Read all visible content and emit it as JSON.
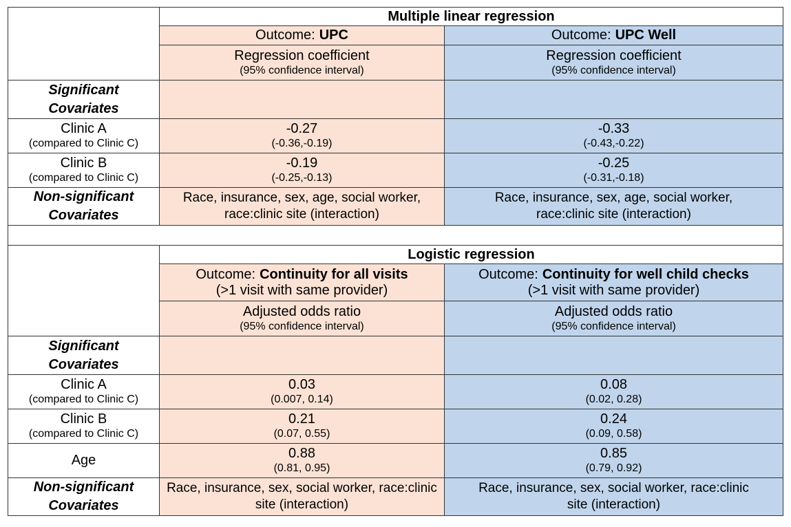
{
  "sections": [
    {
      "title": "Multiple linear regression",
      "outcomes": [
        {
          "prefix": "Outcome:",
          "name": "UPC",
          "measure": "Regression coefficient",
          "measure_note": "(95% confidence interval)"
        },
        {
          "prefix": "Outcome:",
          "name": "UPC Well",
          "measure": "Regression coefficient",
          "measure_note": "(95% confidence interval)"
        }
      ],
      "significant_label": "Significant Covariates",
      "rows": [
        {
          "label": "Clinic A",
          "note": "(compared to Clinic C)",
          "cells": [
            {
              "value": -0.27,
              "ci": "(-0.36,-0.19)"
            },
            {
              "value": -0.33,
              "ci": "(-0.43,-0.22)"
            }
          ]
        },
        {
          "label": "Clinic B",
          "note": "(compared to Clinic C)",
          "cells": [
            {
              "value": -0.19,
              "ci": "(-0.25,-0.13)"
            },
            {
              "value": -0.25,
              "ci": "(-0.31,-0.18)"
            }
          ]
        }
      ],
      "nonsignificant_label": "Non-significant Covariates",
      "nonsignificant": [
        "Race, insurance, sex, age, social worker, race:clinic site (interaction)",
        "Race, insurance, sex, age, social worker, race:clinic site (interaction)"
      ]
    },
    {
      "title": "Logistic regression",
      "outcomes": [
        {
          "prefix": "Outcome:",
          "name": "Continuity for all visits",
          "detail": "(>1 visit with same provider)",
          "measure": "Adjusted odds ratio",
          "measure_note": "(95% confidence interval)"
        },
        {
          "prefix": "Outcome:",
          "name": "Continuity for well child checks",
          "detail": "(>1 visit with same provider)",
          "measure": "Adjusted odds ratio",
          "measure_note": "(95% confidence interval)"
        }
      ],
      "significant_label": "Significant Covariates",
      "rows": [
        {
          "label": "Clinic A",
          "note": "(compared to Clinic C)",
          "cells": [
            {
              "value": 0.03,
              "ci": "(0.007, 0.14)"
            },
            {
              "value": 0.08,
              "ci": "(0.02, 0.28)"
            }
          ]
        },
        {
          "label": "Clinic B",
          "note": "(compared to Clinic C)",
          "cells": [
            {
              "value": 0.21,
              "ci": "(0.07, 0.55)"
            },
            {
              "value": 0.24,
              "ci": "(0.09, 0.58)"
            }
          ]
        },
        {
          "label": "Age",
          "cells": [
            {
              "value": 0.88,
              "ci": "(0.81, 0.95)"
            },
            {
              "value": 0.85,
              "ci": "(0.79, 0.92)"
            }
          ]
        }
      ],
      "nonsignificant_label": "Non-significant Covariates",
      "nonsignificant": [
        "Race, insurance, sex, social worker, race:clinic site (interaction)",
        "Race, insurance, sex, social worker, race:clinic site (interaction)"
      ]
    }
  ]
}
